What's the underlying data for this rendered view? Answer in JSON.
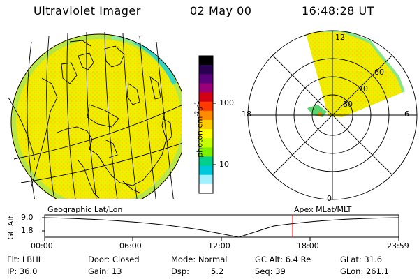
{
  "header": {
    "title": "Ultraviolet Imager",
    "date": "02 May 00",
    "time": "16:48:28 UT"
  },
  "colorbar": {
    "label": "photon cm^-2 s^-1",
    "unit_main": "photon cm",
    "unit_exp1": "-2",
    "unit_s": "s",
    "unit_exp2": "-1",
    "ticks": [
      "100",
      "10"
    ],
    "colors": [
      "#000000",
      "#2a0050",
      "#5a007a",
      "#9a007a",
      "#d20014",
      "#ff3a00",
      "#ff8c00",
      "#ffcc00",
      "#ffff00",
      "#c8ff00",
      "#7cf000",
      "#00d08c",
      "#00c8dc",
      "#a0f0ff",
      "#ffffff"
    ]
  },
  "polar": {
    "mlt_labels": {
      "top": "12",
      "left": "18",
      "right": "6",
      "bottom": "0"
    },
    "lat_labels": [
      "60",
      "70",
      "80"
    ]
  },
  "timeline": {
    "ylabel": "GC Alt",
    "yticks": [
      "9.0",
      "1.8"
    ],
    "left_title": "Geographic Lat/Lon",
    "right_title": "Apex MLat/MLT",
    "xticks": [
      "00:00",
      "06:00",
      "12:00",
      "18:00",
      "23:59"
    ],
    "marker_time": "16:48",
    "marker_fraction": 0.7003
  },
  "info": {
    "filter": "Flt: LBHL",
    "ip": "IP: 36.0",
    "door": "Door: Closed",
    "gain": "Gain: 13",
    "mode": "Mode: Normal",
    "dsp_label": "Dsp:",
    "dsp_value": "5.2",
    "gc_alt": "GC Alt: 6.4 Re",
    "seq": "Seq: 39",
    "glat": "GLat:  31.6",
    "glon": "GLon: 261.1"
  }
}
